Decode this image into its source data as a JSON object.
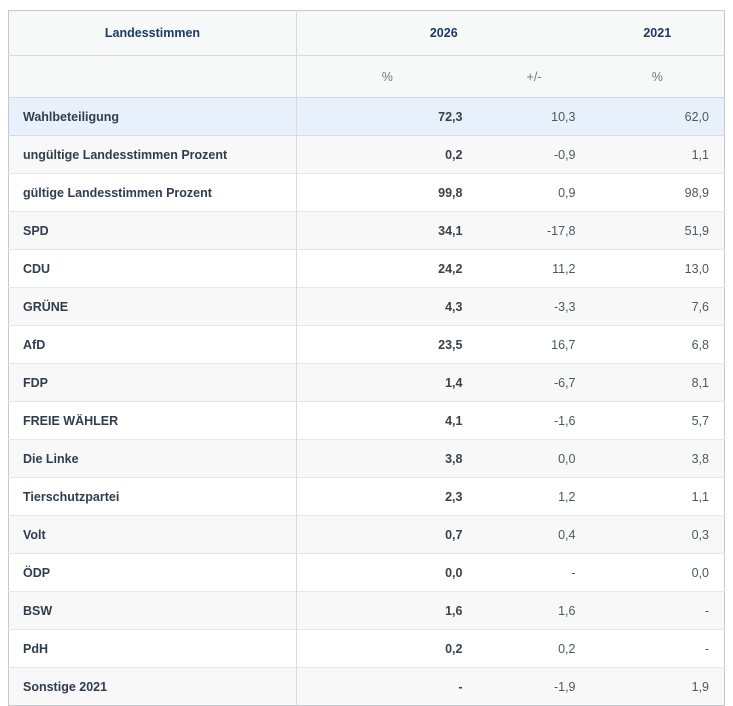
{
  "chart_data": {
    "type": "table",
    "title": "Landesstimmen",
    "columns": [
      "Landesstimmen",
      "2026 %",
      "2026 +/-",
      "2021 %"
    ],
    "rows": [
      {
        "label": "Wahlbeteiligung",
        "pct2026": "72,3",
        "diff2026": "10,3",
        "pct2021": "62,0",
        "highlighted": true
      },
      {
        "label": "ungültige Landesstimmen Prozent",
        "pct2026": "0,2",
        "diff2026": "-0,9",
        "pct2021": "1,1"
      },
      {
        "label": "gültige Landesstimmen Prozent",
        "pct2026": "99,8",
        "diff2026": "0,9",
        "pct2021": "98,9"
      },
      {
        "label": "SPD",
        "pct2026": "34,1",
        "diff2026": "-17,8",
        "pct2021": "51,9"
      },
      {
        "label": "CDU",
        "pct2026": "24,2",
        "diff2026": "11,2",
        "pct2021": "13,0"
      },
      {
        "label": "GRÜNE",
        "pct2026": "4,3",
        "diff2026": "-3,3",
        "pct2021": "7,6"
      },
      {
        "label": "AfD",
        "pct2026": "23,5",
        "diff2026": "16,7",
        "pct2021": "6,8"
      },
      {
        "label": "FDP",
        "pct2026": "1,4",
        "diff2026": "-6,7",
        "pct2021": "8,1"
      },
      {
        "label": "FREIE WÄHLER",
        "pct2026": "4,1",
        "diff2026": "-1,6",
        "pct2021": "5,7"
      },
      {
        "label": "Die Linke",
        "pct2026": "3,8",
        "diff2026": "0,0",
        "pct2021": "3,8"
      },
      {
        "label": "Tierschutzpartei",
        "pct2026": "2,3",
        "diff2026": "1,2",
        "pct2021": "1,1"
      },
      {
        "label": "Volt",
        "pct2026": "0,7",
        "diff2026": "0,4",
        "pct2021": "0,3"
      },
      {
        "label": "ÖDP",
        "pct2026": "0,0",
        "diff2026": "-",
        "pct2021": "0,0"
      },
      {
        "label": "BSW",
        "pct2026": "1,6",
        "diff2026": "1,6",
        "pct2021": "-"
      },
      {
        "label": "PdH",
        "pct2026": "0,2",
        "diff2026": "0,2",
        "pct2021": "-"
      },
      {
        "label": "Sonstige 2021",
        "pct2026": "-",
        "diff2026": "-1,9",
        "pct2021": "1,9"
      }
    ]
  },
  "header": {
    "col_label": "Landesstimmen",
    "year_current": "2026",
    "year_previous": "2021",
    "sub_pct_current": "%",
    "sub_diff": "+/-",
    "sub_pct_previous": "%"
  },
  "colors": {
    "highlight_row_bg": "#e8f1fb",
    "alt_row_bg": "#f8f8f9",
    "header_bg": "#f7f8f8",
    "header_text": "#1b3a66",
    "outer_border": "#c6c8ca"
  }
}
